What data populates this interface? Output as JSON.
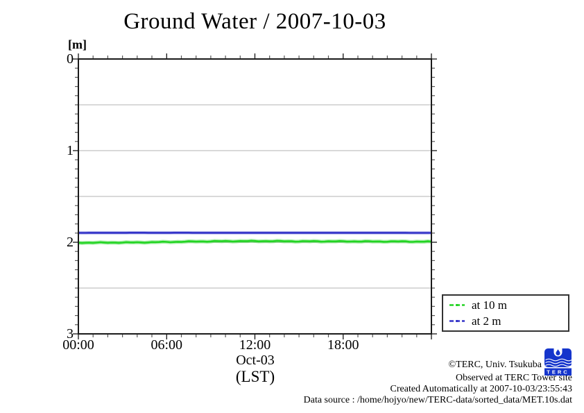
{
  "title": "Ground Water / 2007-10-03",
  "y_axis": {
    "unit_label": "[m]",
    "tick_labels": [
      "0",
      "1",
      "2",
      "3"
    ],
    "tick_values": [
      0,
      1,
      2,
      3
    ]
  },
  "x_axis": {
    "tick_labels": [
      "00:00",
      "06:00",
      "12:00",
      "18:00"
    ],
    "tick_hours": [
      0,
      6,
      12,
      18
    ],
    "date_label": "Oct-03",
    "timezone_label": "(LST)"
  },
  "legend": {
    "entries": [
      {
        "label": "at 10 m",
        "color": "#22d422"
      },
      {
        "label": "at 2 m",
        "color": "#3232c8"
      }
    ]
  },
  "footer": {
    "copyright": "©TERC, Univ. Tsukuba",
    "observed": "Observed at TERC Tower site",
    "created": "Created Automatically at 2007-10-03/23:55:43",
    "datasource": "Data source : /home/hojyo/new/TERC-data/sorted_data/MET.10s.dat"
  },
  "logo": {
    "text": "TERC",
    "color": "#1535cc"
  },
  "chart_data": {
    "type": "line",
    "title": "Ground Water / 2007-10-03",
    "xlabel": "Oct-03 (LST)",
    "ylabel": "[m]",
    "xlim_hours": [
      0,
      24
    ],
    "ylim": [
      0,
      3
    ],
    "y_inverted": true,
    "grid": "horizontal every 0.5 m",
    "y_minor_step": 0.1,
    "x_minor_step_hours": 1,
    "x_major_step_hours": 6,
    "legend_position": "outside bottom-right",
    "x_hours": [
      0,
      1,
      2,
      3,
      4,
      5,
      6,
      7,
      8,
      9,
      10,
      11,
      12,
      13,
      14,
      15,
      16,
      17,
      18,
      19,
      20,
      21,
      22,
      23,
      24
    ],
    "series": [
      {
        "name": "at 10 m",
        "color": "#22d422",
        "values": [
          2.005,
          2.005,
          2.004,
          2.003,
          2.002,
          2.0,
          1.997,
          1.995,
          1.992,
          1.99,
          1.989,
          1.988,
          1.988,
          1.988,
          1.989,
          1.99,
          1.99,
          1.99,
          1.991,
          1.991,
          1.992,
          1.992,
          1.992,
          1.993,
          1.993
        ]
      },
      {
        "name": "at 2 m",
        "color": "#3232c8",
        "values": [
          1.898,
          1.897,
          1.897,
          1.897,
          1.896,
          1.897,
          1.897,
          1.896,
          1.897,
          1.897,
          1.897,
          1.897,
          1.897,
          1.897,
          1.897,
          1.897,
          1.897,
          1.897,
          1.897,
          1.897,
          1.897,
          1.897,
          1.897,
          1.898,
          1.898
        ]
      }
    ]
  }
}
